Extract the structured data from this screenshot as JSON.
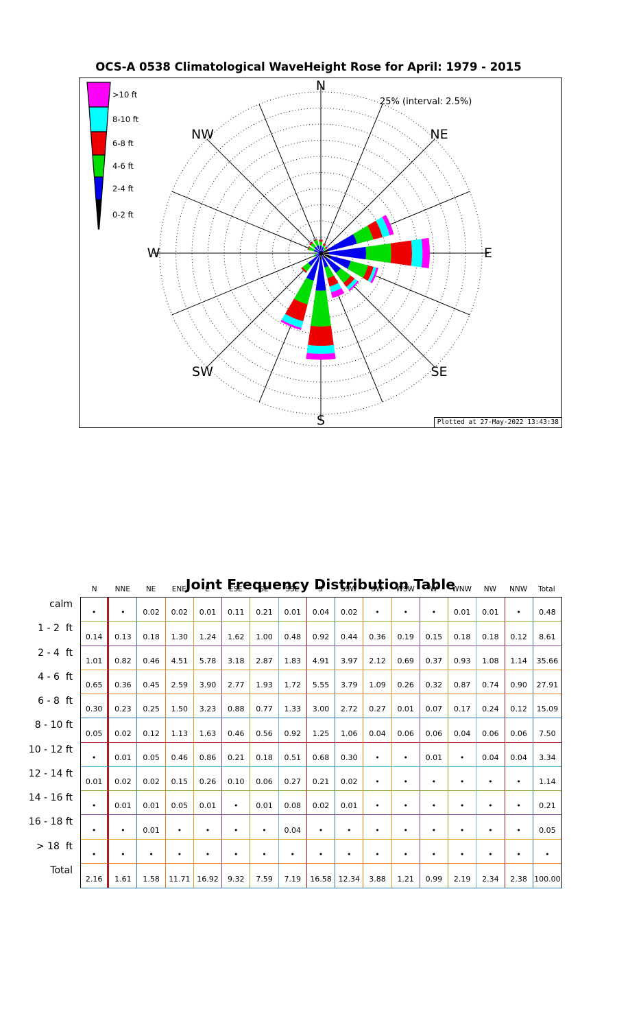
{
  "chart": {
    "title": "OCS-A 0538 Climatological WaveHeight Rose for April: 1979 - 2015",
    "scale_label": "25% (interval: 2.5%)",
    "plotted_at": "Plotted at 27-May-2022 13:43:38",
    "compass_labels": [
      "N",
      "NE",
      "E",
      "SE",
      "S",
      "SW",
      "W",
      "NW"
    ],
    "legend": [
      {
        "label": ">10 ft",
        "color": "#ff00ff"
      },
      {
        "label": "8-10 ft",
        "color": "#00ffff"
      },
      {
        "label": "6-8 ft",
        "color": "#ee0000"
      },
      {
        "label": "4-6 ft",
        "color": "#00dd00"
      },
      {
        "label": "2-4 ft",
        "color": "#0000ee"
      },
      {
        "label": "0-2 ft",
        "color": "#000000"
      }
    ]
  },
  "chart_data": {
    "type": "polar-stacked-bar",
    "title": "OCS-A 0538 Climatological WaveHeight Rose for April: 1979 - 2015",
    "units": "percent frequency of occurrence",
    "ring_max": 25,
    "ring_interval": 2.5,
    "directions": [
      "N",
      "NNE",
      "NE",
      "ENE",
      "E",
      "ESE",
      "SE",
      "SSE",
      "S",
      "SSW",
      "SW",
      "WSW",
      "W",
      "WNW",
      "NW",
      "NNW"
    ],
    "series": [
      {
        "name": "0-2 ft",
        "color": "#000000",
        "values": [
          0.14,
          0.13,
          0.18,
          1.3,
          1.24,
          1.62,
          1.0,
          0.48,
          0.92,
          0.44,
          0.36,
          0.19,
          0.15,
          0.18,
          0.18,
          0.12
        ]
      },
      {
        "name": "2-4 ft",
        "color": "#0000ee",
        "values": [
          1.01,
          0.82,
          0.46,
          4.51,
          5.78,
          3.18,
          2.87,
          1.83,
          4.91,
          3.97,
          2.12,
          0.69,
          0.37,
          0.93,
          1.08,
          1.14
        ]
      },
      {
        "name": "4-6 ft",
        "color": "#00dd00",
        "values": [
          0.65,
          0.36,
          0.45,
          2.59,
          3.9,
          2.77,
          1.93,
          1.72,
          5.55,
          3.79,
          1.09,
          0.26,
          0.32,
          0.87,
          0.74,
          0.9
        ]
      },
      {
        "name": "6-8 ft",
        "color": "#ee0000",
        "values": [
          0.3,
          0.23,
          0.25,
          1.5,
          3.23,
          0.88,
          0.77,
          1.33,
          3.0,
          2.72,
          0.27,
          0.01,
          0.07,
          0.17,
          0.24,
          0.12
        ]
      },
      {
        "name": "8-10 ft",
        "color": "#00ffff",
        "values": [
          0.05,
          0.02,
          0.12,
          1.13,
          1.63,
          0.46,
          0.56,
          0.92,
          1.25,
          1.06,
          0.04,
          0.06,
          0.06,
          0.04,
          0.06,
          0.06
        ]
      },
      {
        "name": ">10 ft",
        "color": "#ff00ff",
        "values": [
          0.01,
          0.04,
          0.09,
          0.66,
          1.13,
          0.31,
          0.25,
          0.9,
          0.91,
          0.33,
          0.0,
          0.0,
          0.01,
          0.0,
          0.04,
          0.04
        ]
      }
    ]
  },
  "table": {
    "title": "Joint Frequency Distribution Table",
    "columns": [
      "N",
      "NNE",
      "NE",
      "ENE",
      "E",
      "ESE",
      "SE",
      "SSE",
      "S",
      "SSW",
      "SW",
      "WSW",
      "W",
      "WNW",
      "NW",
      "NNW",
      "Total"
    ],
    "rows": [
      {
        "label": "calm",
        "values": [
          "•",
          "•",
          "0.02",
          "0.02",
          "0.01",
          "0.11",
          "0.21",
          "0.01",
          "0.04",
          "0.02",
          "•",
          "•",
          "•",
          "0.01",
          "0.01",
          "•",
          "0.48"
        ]
      },
      {
        "label": "1 - 2  ft",
        "values": [
          "0.14",
          "0.13",
          "0.18",
          "1.30",
          "1.24",
          "1.62",
          "1.00",
          "0.48",
          "0.92",
          "0.44",
          "0.36",
          "0.19",
          "0.15",
          "0.18",
          "0.18",
          "0.12",
          "8.61"
        ]
      },
      {
        "label": "2 - 4  ft",
        "values": [
          "1.01",
          "0.82",
          "0.46",
          "4.51",
          "5.78",
          "3.18",
          "2.87",
          "1.83",
          "4.91",
          "3.97",
          "2.12",
          "0.69",
          "0.37",
          "0.93",
          "1.08",
          "1.14",
          "35.66"
        ]
      },
      {
        "label": "4 - 6  ft",
        "values": [
          "0.65",
          "0.36",
          "0.45",
          "2.59",
          "3.90",
          "2.77",
          "1.93",
          "1.72",
          "5.55",
          "3.79",
          "1.09",
          "0.26",
          "0.32",
          "0.87",
          "0.74",
          "0.90",
          "27.91"
        ]
      },
      {
        "label": "6 - 8  ft",
        "values": [
          "0.30",
          "0.23",
          "0.25",
          "1.50",
          "3.23",
          "0.88",
          "0.77",
          "1.33",
          "3.00",
          "2.72",
          "0.27",
          "0.01",
          "0.07",
          "0.17",
          "0.24",
          "0.12",
          "15.09"
        ]
      },
      {
        "label": "8 - 10 ft",
        "values": [
          "0.05",
          "0.02",
          "0.12",
          "1.13",
          "1.63",
          "0.46",
          "0.56",
          "0.92",
          "1.25",
          "1.06",
          "0.04",
          "0.06",
          "0.06",
          "0.04",
          "0.06",
          "0.06",
          "7.50"
        ]
      },
      {
        "label": "10 - 12 ft",
        "values": [
          "•",
          "0.01",
          "0.05",
          "0.46",
          "0.86",
          "0.21",
          "0.18",
          "0.51",
          "0.68",
          "0.30",
          "•",
          "•",
          "0.01",
          "•",
          "0.04",
          "0.04",
          "3.34"
        ]
      },
      {
        "label": "12 - 14 ft",
        "values": [
          "0.01",
          "0.02",
          "0.02",
          "0.15",
          "0.26",
          "0.10",
          "0.06",
          "0.27",
          "0.21",
          "0.02",
          "•",
          "•",
          "•",
          "•",
          "•",
          "•",
          "1.14"
        ]
      },
      {
        "label": "14 - 16 ft",
        "values": [
          "•",
          "0.01",
          "0.01",
          "0.05",
          "0.01",
          "•",
          "0.01",
          "0.08",
          "0.02",
          "0.01",
          "•",
          "•",
          "•",
          "•",
          "•",
          "•",
          "0.21"
        ]
      },
      {
        "label": "16 - 18 ft",
        "values": [
          "•",
          "•",
          "0.01",
          "•",
          "•",
          "•",
          "•",
          "0.04",
          "•",
          "•",
          "•",
          "•",
          "•",
          "•",
          "•",
          "•",
          "0.05"
        ]
      },
      {
        "label": "> 18  ft",
        "values": [
          "•",
          "•",
          "•",
          "•",
          "•",
          "•",
          "•",
          "•",
          "•",
          "•",
          "•",
          "•",
          "•",
          "•",
          "•",
          "•",
          "•"
        ]
      },
      {
        "label": "Total",
        "values": [
          "2.16",
          "1.61",
          "1.58",
          "11.71",
          "16.92",
          "9.32",
          "7.59",
          "7.19",
          "16.58",
          "12.34",
          "3.88",
          "1.21",
          "0.99",
          "2.19",
          "2.34",
          "2.38",
          "100.00"
        ]
      }
    ]
  },
  "colors": {
    "rose_grid": "#000000",
    "table_vertical_borders": [
      "#a81c28",
      "#2878b4",
      "#e87818",
      "#e8a018",
      "#884498",
      "#8aa82a",
      "#58b8e0",
      "#a81c28",
      "#2878b4",
      "#e87818",
      "#e8a018",
      "#884498",
      "#8aa82a",
      "#58b8e0",
      "#a81c28",
      "#2878b4"
    ],
    "table_horizontal_borders": [
      "#8aa82a",
      "#884498",
      "#e8a018",
      "#e87818",
      "#2878b4",
      "#a81c28",
      "#58b8e0",
      "#8aa82a",
      "#884498",
      "#e8a018",
      "#e87818",
      "#2878b4"
    ]
  }
}
